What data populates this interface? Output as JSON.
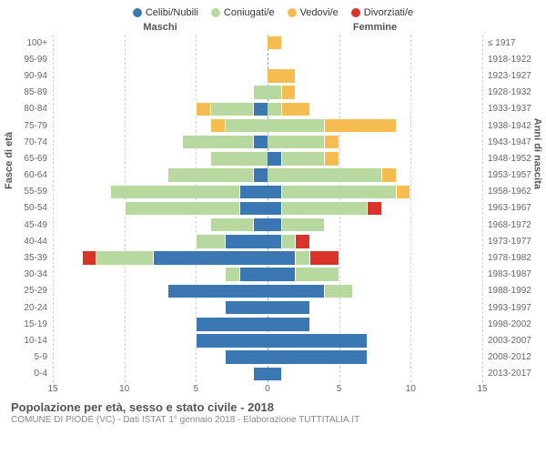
{
  "legend": [
    {
      "label": "Celibi/Nubili",
      "color": "#3b78b3"
    },
    {
      "label": "Coniugati/e",
      "color": "#b7d9a0"
    },
    {
      "label": "Vedovi/e",
      "color": "#f5bd4f"
    },
    {
      "label": "Divorziati/e",
      "color": "#d9332a"
    }
  ],
  "headers": {
    "male": "Maschi",
    "female": "Femmine"
  },
  "axis_labels": {
    "left": "Fasce di età",
    "right": "Anni di nascita"
  },
  "chart": {
    "type": "population-pyramid",
    "xmax": 15,
    "xticks": [
      15,
      10,
      5,
      0,
      5,
      10,
      15
    ],
    "background_color": "#ffffff",
    "grid_color": "#d0d0d0",
    "center_line_color": "#8aa8c8",
    "bar_height_ratio": 0.8,
    "label_fontsize": 10,
    "tick_fontsize": 10,
    "header_fontsize": 11
  },
  "rows": [
    {
      "age": "100+",
      "birth": "≤ 1917",
      "male": {
        "single": 0,
        "married": 0,
        "widowed": 0,
        "divorced": 0
      },
      "female": {
        "single": 0,
        "married": 0,
        "widowed": 1,
        "divorced": 0
      }
    },
    {
      "age": "95-99",
      "birth": "1918-1922",
      "male": {
        "single": 0,
        "married": 0,
        "widowed": 0,
        "divorced": 0
      },
      "female": {
        "single": 0,
        "married": 0,
        "widowed": 0,
        "divorced": 0
      }
    },
    {
      "age": "90-94",
      "birth": "1923-1927",
      "male": {
        "single": 0,
        "married": 0,
        "widowed": 0,
        "divorced": 0
      },
      "female": {
        "single": 0,
        "married": 0,
        "widowed": 2,
        "divorced": 0
      }
    },
    {
      "age": "85-89",
      "birth": "1928-1932",
      "male": {
        "single": 0,
        "married": 1,
        "widowed": 0,
        "divorced": 0
      },
      "female": {
        "single": 0,
        "married": 1,
        "widowed": 1,
        "divorced": 0
      }
    },
    {
      "age": "80-84",
      "birth": "1933-1937",
      "male": {
        "single": 1,
        "married": 3,
        "widowed": 1,
        "divorced": 0
      },
      "female": {
        "single": 0,
        "married": 1,
        "widowed": 2,
        "divorced": 0
      }
    },
    {
      "age": "75-79",
      "birth": "1938-1942",
      "male": {
        "single": 0,
        "married": 3,
        "widowed": 1,
        "divorced": 0
      },
      "female": {
        "single": 0,
        "married": 4,
        "widowed": 5,
        "divorced": 0
      }
    },
    {
      "age": "70-74",
      "birth": "1943-1947",
      "male": {
        "single": 1,
        "married": 5,
        "widowed": 0,
        "divorced": 0
      },
      "female": {
        "single": 0,
        "married": 4,
        "widowed": 1,
        "divorced": 0
      }
    },
    {
      "age": "65-69",
      "birth": "1948-1952",
      "male": {
        "single": 0,
        "married": 4,
        "widowed": 0,
        "divorced": 0
      },
      "female": {
        "single": 1,
        "married": 3,
        "widowed": 1,
        "divorced": 0
      }
    },
    {
      "age": "60-64",
      "birth": "1953-1957",
      "male": {
        "single": 1,
        "married": 6,
        "widowed": 0,
        "divorced": 0
      },
      "female": {
        "single": 0,
        "married": 8,
        "widowed": 1,
        "divorced": 0
      }
    },
    {
      "age": "55-59",
      "birth": "1958-1962",
      "male": {
        "single": 2,
        "married": 9,
        "widowed": 0,
        "divorced": 0
      },
      "female": {
        "single": 1,
        "married": 8,
        "widowed": 1,
        "divorced": 0
      }
    },
    {
      "age": "50-54",
      "birth": "1963-1967",
      "male": {
        "single": 2,
        "married": 8,
        "widowed": 0,
        "divorced": 0
      },
      "female": {
        "single": 1,
        "married": 6,
        "widowed": 0,
        "divorced": 1
      }
    },
    {
      "age": "45-49",
      "birth": "1968-1972",
      "male": {
        "single": 1,
        "married": 3,
        "widowed": 0,
        "divorced": 0
      },
      "female": {
        "single": 1,
        "married": 3,
        "widowed": 0,
        "divorced": 0
      }
    },
    {
      "age": "40-44",
      "birth": "1973-1977",
      "male": {
        "single": 3,
        "married": 2,
        "widowed": 0,
        "divorced": 0
      },
      "female": {
        "single": 1,
        "married": 1,
        "widowed": 0,
        "divorced": 1
      }
    },
    {
      "age": "35-39",
      "birth": "1978-1982",
      "male": {
        "single": 8,
        "married": 4,
        "widowed": 0,
        "divorced": 1
      },
      "female": {
        "single": 2,
        "married": 1,
        "widowed": 0,
        "divorced": 2
      }
    },
    {
      "age": "30-34",
      "birth": "1983-1987",
      "male": {
        "single": 2,
        "married": 1,
        "widowed": 0,
        "divorced": 0
      },
      "female": {
        "single": 2,
        "married": 3,
        "widowed": 0,
        "divorced": 0
      }
    },
    {
      "age": "25-29",
      "birth": "1988-1992",
      "male": {
        "single": 7,
        "married": 0,
        "widowed": 0,
        "divorced": 0
      },
      "female": {
        "single": 4,
        "married": 2,
        "widowed": 0,
        "divorced": 0
      }
    },
    {
      "age": "20-24",
      "birth": "1993-1997",
      "male": {
        "single": 3,
        "married": 0,
        "widowed": 0,
        "divorced": 0
      },
      "female": {
        "single": 3,
        "married": 0,
        "widowed": 0,
        "divorced": 0
      }
    },
    {
      "age": "15-19",
      "birth": "1998-2002",
      "male": {
        "single": 5,
        "married": 0,
        "widowed": 0,
        "divorced": 0
      },
      "female": {
        "single": 3,
        "married": 0,
        "widowed": 0,
        "divorced": 0
      }
    },
    {
      "age": "10-14",
      "birth": "2003-2007",
      "male": {
        "single": 5,
        "married": 0,
        "widowed": 0,
        "divorced": 0
      },
      "female": {
        "single": 7,
        "married": 0,
        "widowed": 0,
        "divorced": 0
      }
    },
    {
      "age": "5-9",
      "birth": "2008-2012",
      "male": {
        "single": 3,
        "married": 0,
        "widowed": 0,
        "divorced": 0
      },
      "female": {
        "single": 7,
        "married": 0,
        "widowed": 0,
        "divorced": 0
      }
    },
    {
      "age": "0-4",
      "birth": "2013-2017",
      "male": {
        "single": 1,
        "married": 0,
        "widowed": 0,
        "divorced": 0
      },
      "female": {
        "single": 1,
        "married": 0,
        "widowed": 0,
        "divorced": 0
      }
    }
  ],
  "footer": {
    "title": "Popolazione per età, sesso e stato civile - 2018",
    "subtitle": "COMUNE DI PIODE (VC) - Dati ISTAT 1° gennaio 2018 - Elaborazione TUTTITALIA.IT"
  }
}
